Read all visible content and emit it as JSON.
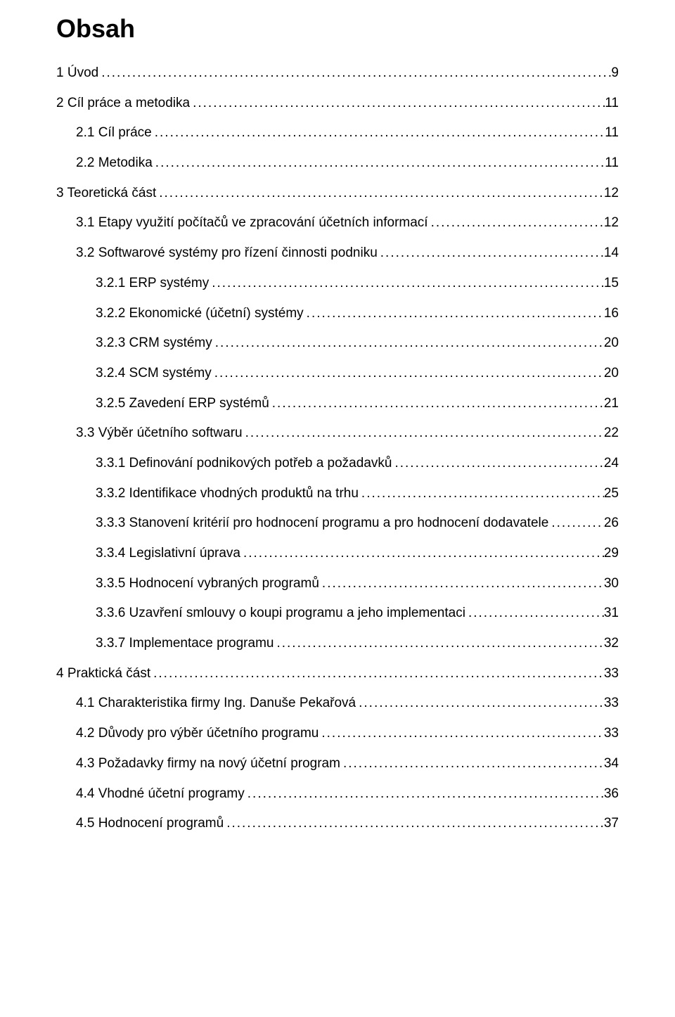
{
  "title": "Obsah",
  "colors": {
    "text": "#000000",
    "background": "#ffffff"
  },
  "typography": {
    "title_fontsize": 36,
    "title_weight": "bold",
    "body_fontsize": 19,
    "font_family": "Arial"
  },
  "toc": [
    {
      "level": 0,
      "label": "1 Úvod",
      "page": "9"
    },
    {
      "level": 0,
      "label": "2 Cíl práce a metodika",
      "page": "11"
    },
    {
      "level": 1,
      "label": "2.1 Cíl práce",
      "page": "11"
    },
    {
      "level": 1,
      "label": "2.2 Metodika",
      "page": "11"
    },
    {
      "level": 0,
      "label": "3 Teoretická část",
      "page": "12"
    },
    {
      "level": 1,
      "label": "3.1 Etapy využití počítačů ve zpracování účetních informací",
      "page": "12"
    },
    {
      "level": 1,
      "label": "3.2 Softwarové systémy pro řízení činnosti podniku",
      "page": "14"
    },
    {
      "level": 2,
      "label": "3.2.1 ERP systémy",
      "page": "15"
    },
    {
      "level": 2,
      "label": "3.2.2 Ekonomické (účetní) systémy",
      "page": "16"
    },
    {
      "level": 2,
      "label": "3.2.3 CRM systémy",
      "page": "20"
    },
    {
      "level": 2,
      "label": "3.2.4 SCM systémy",
      "page": "20"
    },
    {
      "level": 2,
      "label": "3.2.5 Zavedení ERP systémů",
      "page": "21"
    },
    {
      "level": 1,
      "label": "3.3 Výběr účetního softwaru",
      "page": "22"
    },
    {
      "level": 2,
      "label": "3.3.1 Definování podnikových potřeb a požadavků",
      "page": "24"
    },
    {
      "level": 2,
      "label": "3.3.2 Identifikace vhodných produktů na trhu",
      "page": "25"
    },
    {
      "level": 2,
      "label": "3.3.3 Stanovení kritérií pro hodnocení programu a pro hodnocení dodavatele",
      "page": "26"
    },
    {
      "level": 2,
      "label": "3.3.4 Legislativní úprava",
      "page": "29"
    },
    {
      "level": 2,
      "label": "3.3.5 Hodnocení vybraných programů",
      "page": "30"
    },
    {
      "level": 2,
      "label": "3.3.6 Uzavření smlouvy o koupi programu a jeho implementaci",
      "page": "31"
    },
    {
      "level": 2,
      "label": "3.3.7 Implementace programu",
      "page": "32"
    },
    {
      "level": 0,
      "label": "4 Praktická část",
      "page": "33"
    },
    {
      "level": 1,
      "label": "4.1 Charakteristika firmy Ing. Danuše Pekařová",
      "page": "33"
    },
    {
      "level": 1,
      "label": "4.2 Důvody pro výběr účetního programu",
      "page": "33"
    },
    {
      "level": 1,
      "label": "4.3 Požadavky firmy na nový účetní program",
      "page": "34"
    },
    {
      "level": 1,
      "label": "4.4 Vhodné účetní programy",
      "page": "36"
    },
    {
      "level": 1,
      "label": "4.5 Hodnocení programů",
      "page": "37"
    }
  ]
}
